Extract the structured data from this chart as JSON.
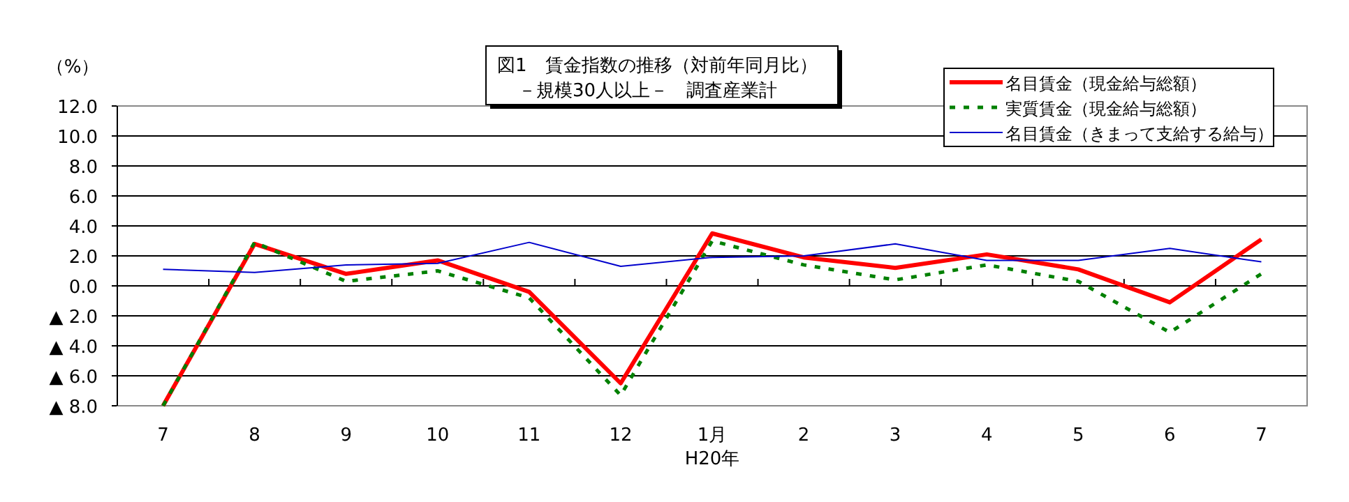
{
  "chart_data": {
    "type": "line",
    "title": "図1　賃金指数の推移（対前年同月比）",
    "subtitle": "－規模30人以上－　調査産業計",
    "ylabel": "（%）",
    "xlabel": "H20年",
    "categories": [
      "7",
      "8",
      "9",
      "10",
      "11",
      "12",
      "1月",
      "2",
      "3",
      "4",
      "5",
      "6",
      "7"
    ],
    "series": [
      {
        "name": "名目賃金（現金給与総額）",
        "color": "#ff0000",
        "line_style": "solid",
        "values": [
          -8.0,
          2.8,
          0.8,
          1.7,
          -0.4,
          -6.5,
          3.5,
          1.9,
          1.2,
          2.1,
          1.1,
          -1.1,
          3.1
        ]
      },
      {
        "name": "実質賃金（現金給与総額）",
        "color": "#008000",
        "line_style": "dotted",
        "values": [
          -8.0,
          2.9,
          0.3,
          1.0,
          -0.8,
          -7.3,
          3.0,
          1.4,
          0.4,
          1.4,
          0.3,
          -3.1,
          0.8
        ]
      },
      {
        "name": "名目賃金（きまって支給する給与）",
        "color": "#0000cc",
        "line_style": "solid",
        "values": [
          1.1,
          0.9,
          1.4,
          1.5,
          2.9,
          1.3,
          1.9,
          2.0,
          2.8,
          1.7,
          1.7,
          2.5,
          1.6
        ]
      }
    ],
    "ylim": [
      -8,
      12
    ],
    "yticks": [
      {
        "value": -8,
        "label": "▲ 8.0"
      },
      {
        "value": -6,
        "label": "▲ 6.0"
      },
      {
        "value": -4,
        "label": "▲ 4.0"
      },
      {
        "value": -2,
        "label": "▲ 2.0"
      },
      {
        "value": 0,
        "label": "0.0"
      },
      {
        "value": 2,
        "label": "2.0"
      },
      {
        "value": 4,
        "label": "4.0"
      },
      {
        "value": 6,
        "label": "6.0"
      },
      {
        "value": 8,
        "label": "8.0"
      },
      {
        "value": 10,
        "label": "10.0"
      },
      {
        "value": 12,
        "label": "12.0"
      }
    ],
    "grid": "y",
    "legend": "top right",
    "marker": "none"
  }
}
